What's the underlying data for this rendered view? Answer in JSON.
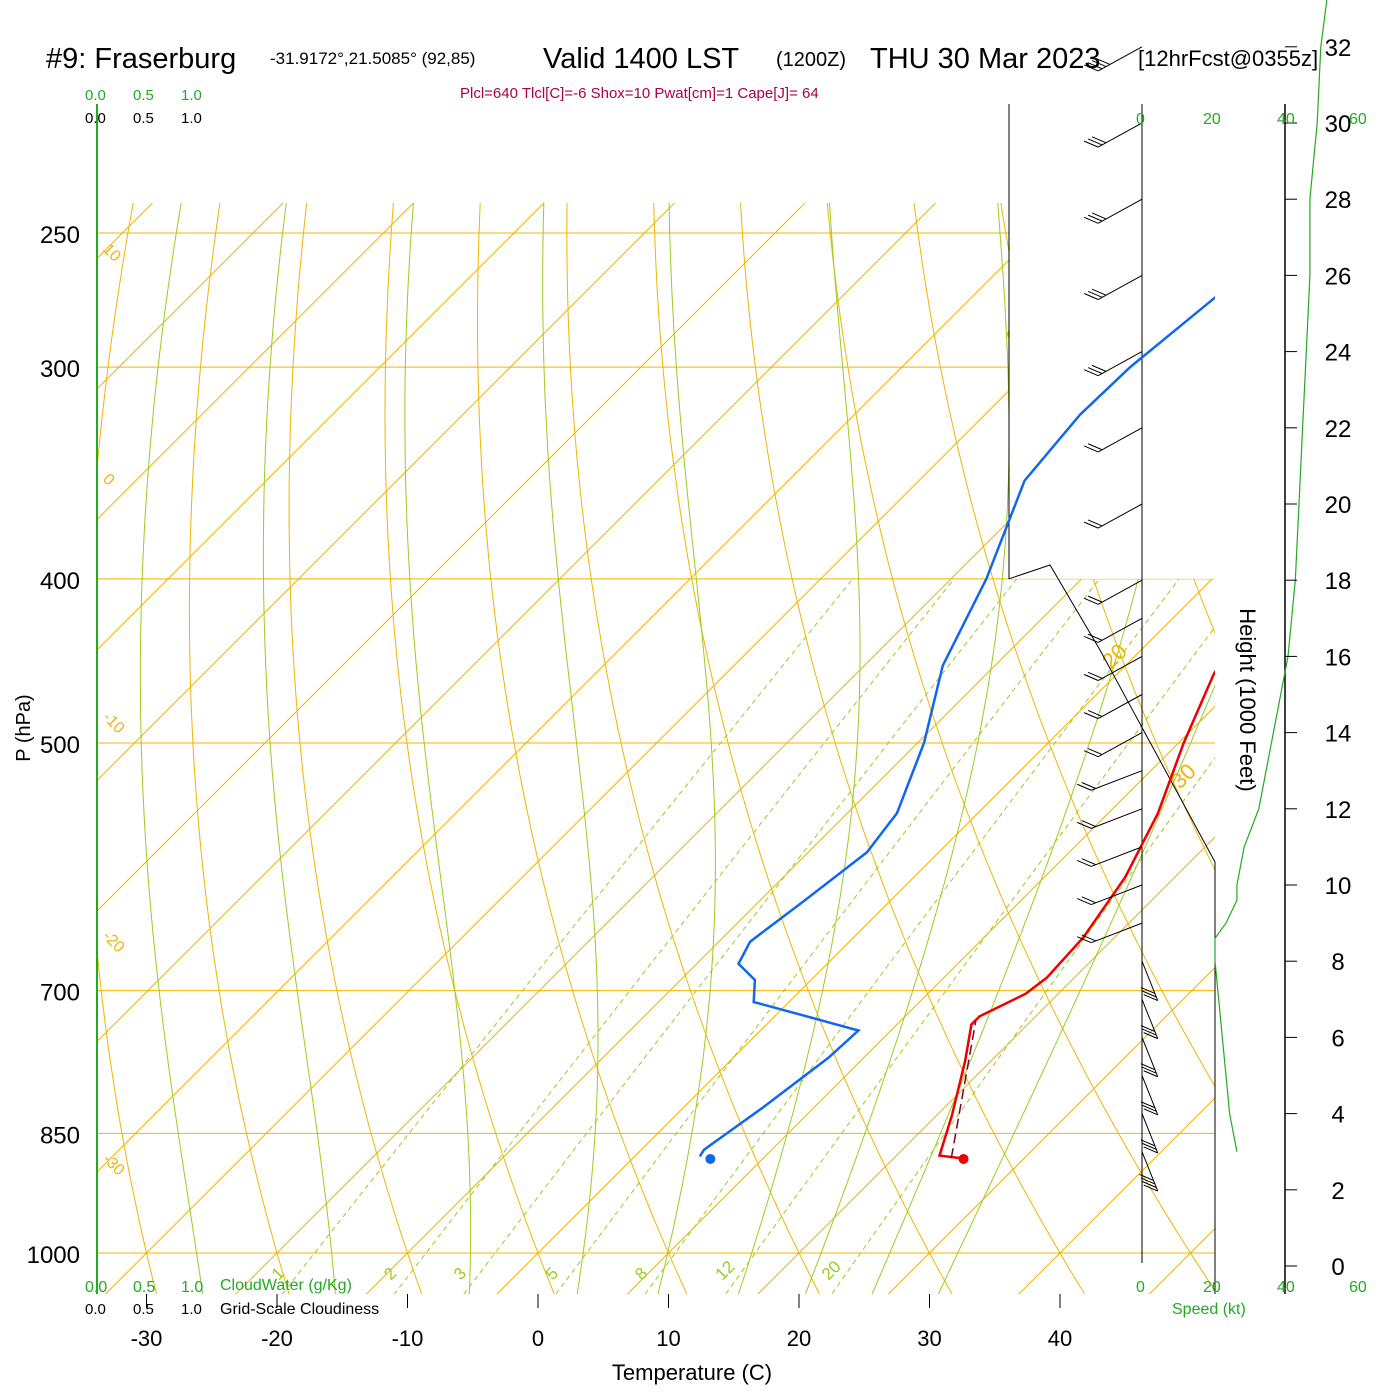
{
  "header": {
    "station": "#9: Fraserburg",
    "coords": "-31.9172°,21.5085° (92,85)",
    "valid": "Valid 1400 LST",
    "utc": "(1200Z)",
    "date": "THU 30 Mar 2023",
    "forecast": "[12hrFcst@0355z]",
    "indices": "Plcl=640 Tlcl[C]=-6 Shox=10 Pwat[cm]=1 Cape[J]= 64"
  },
  "scales": {
    "cloudwater_ticks": [
      "0.0",
      "0.5",
      "1.0"
    ],
    "cloudwater_label": "CloudWater (g/Kg)",
    "cloudiness_ticks": [
      "0.0",
      "0.5",
      "1.0"
    ],
    "cloudiness_label": "Grid-Scale Cloudiness",
    "speed_ticks": [
      "0",
      "20",
      "40",
      "60"
    ],
    "speed_label": "Speed (kt)"
  },
  "colors": {
    "isotherm": "#f0b400",
    "dry_adiabat": "#f0b400",
    "moist_adiabat": "#99cc22",
    "mixing_ratio": "#99cc22",
    "temperature": "#ee0000",
    "dewpoint": "#1166ee",
    "parcel": "#770033",
    "green_scale": "#22aa22",
    "indices": "#aa0044"
  },
  "chart_data": {
    "type": "line",
    "title": "#9: Fraserburg -31.9172°,21.5085° (92,85) Valid 1400 LST (1200Z) THU 30 Mar 2023 [12hrFcst@0355z]",
    "xlabel": "Temperature (C)",
    "ylabel": "P (hPa)",
    "y2label": "Height (1000 Feet)",
    "x_ticks": [
      -30,
      -20,
      -10,
      0,
      10,
      20,
      30,
      40
    ],
    "p_ticks": [
      250,
      300,
      400,
      500,
      700,
      850,
      1000
    ],
    "height_ticks": [
      0,
      2,
      4,
      6,
      8,
      10,
      12,
      14,
      16,
      18,
      20,
      22,
      24,
      26,
      28,
      30,
      32
    ],
    "isotherm_labels": [
      -30,
      -20,
      -10,
      0,
      10,
      20,
      30
    ],
    "mixing_ratio_labels": [
      "1",
      "2",
      "3",
      "5",
      "8",
      "12",
      "20"
    ],
    "series": [
      {
        "name": "Temperature",
        "points": [
          [
            25.1,
            879
          ],
          [
            23.3,
            876
          ],
          [
            21.2,
            830
          ],
          [
            18.0,
            770
          ],
          [
            15.7,
            733
          ],
          [
            15.7,
            725
          ],
          [
            17.5,
            703
          ],
          [
            17.9,
            688
          ],
          [
            17.6,
            651
          ],
          [
            16.2,
            600
          ],
          [
            13.8,
            550
          ],
          [
            10.4,
            500
          ],
          [
            7.4,
            455
          ],
          [
            4.8,
            400
          ],
          [
            1.4,
            350
          ],
          [
            -2.7,
            300
          ],
          [
            -6.5,
            252
          ]
        ]
      },
      {
        "name": "Dewpoint",
        "points": [
          [
            5.0,
            877
          ],
          [
            4.8,
            869
          ],
          [
            6.1,
            820
          ],
          [
            7.3,
            767
          ],
          [
            7.5,
            739
          ],
          [
            3.2,
            727
          ],
          [
            -2.7,
            711
          ],
          [
            -4.3,
            690
          ],
          [
            -6.8,
            675
          ],
          [
            -7.6,
            655
          ],
          [
            -6.6,
            620
          ],
          [
            -5.5,
            580
          ],
          [
            -6.2,
            550
          ],
          [
            -9.5,
            500
          ],
          [
            -14.0,
            450
          ],
          [
            -17.3,
            400
          ],
          [
            -21.9,
            350
          ],
          [
            -22.7,
            320
          ],
          [
            -22.5,
            300
          ],
          [
            -21.2,
            270
          ],
          [
            -20.0,
            252
          ]
        ]
      },
      {
        "name": "Parcel",
        "points": [
          [
            24.4,
            879
          ],
          [
            15.8,
            730
          ]
        ]
      }
    ],
    "surface_markers": {
      "temperature": [
        25.4,
        880
      ],
      "dewpoint": [
        6.0,
        880
      ]
    },
    "wind": {
      "note": "wind barbs on the right, about 5-20 kt",
      "heights_kft": [
        3,
        4,
        5,
        6,
        7,
        8,
        9,
        10,
        11,
        12,
        13,
        14,
        15,
        16,
        17,
        18,
        20,
        22,
        24,
        26,
        28,
        30,
        32
      ],
      "speeds_kt": [
        18,
        17,
        16,
        15,
        14,
        13,
        12,
        11,
        10,
        10,
        10,
        10,
        10,
        10,
        10,
        10,
        12,
        12,
        13,
        14,
        15,
        15,
        18
      ]
    },
    "speed_profile": {
      "heights_kft": [
        3.0,
        4.0,
        5.0,
        6.0,
        7.0,
        8.0,
        8.6,
        9.0,
        9.6,
        10.0,
        11.0,
        12.0,
        14.0,
        16.0,
        18.0,
        20.0,
        22.0,
        24.0,
        26.0,
        28.0,
        30.0,
        32.0,
        33.5
      ],
      "speeds_kt": [
        26,
        24,
        23,
        22,
        21,
        20,
        20,
        23,
        26,
        26,
        28,
        32,
        36,
        40,
        42,
        43,
        44,
        45,
        46,
        46,
        48,
        49,
        51
      ]
    },
    "grid": true
  }
}
